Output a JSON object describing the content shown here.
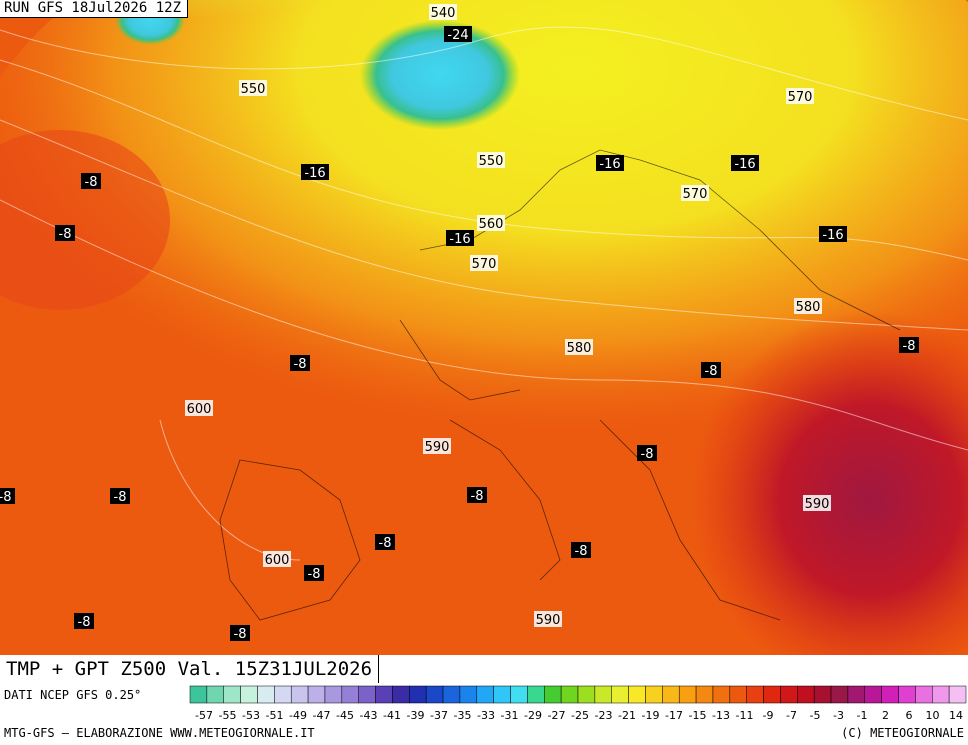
{
  "header": {
    "run": "RUN GFS 18Jul2026 12Z"
  },
  "title": "TMP + GPT Z500 Val. 15Z31JUL2026",
  "footer": {
    "source": "DATI NCEP GFS 0.25°",
    "credit": "MTG-GFS — ELABORAZIONE WWW.METEOGIORNALE.IT",
    "copyright": "(C) METEOGIORNALE"
  },
  "map_labels": [
    "540",
    "-24",
    "550",
    "570",
    "-8",
    "-16",
    "550",
    "-16",
    "-16",
    "570",
    "-8",
    "560",
    "-16",
    "-16",
    "570",
    "580",
    "-8",
    "-8",
    "580",
    "-8",
    "600",
    "590",
    "-8",
    "-8",
    "-8",
    "-8",
    "590",
    "-8",
    "-8",
    "600",
    "-8",
    "-8",
    "590",
    "-8"
  ],
  "colorbar": {
    "labels": [
      "-57",
      "-55",
      "-53",
      "-51",
      "-49",
      "-47",
      "-45",
      "-43",
      "-41",
      "-39",
      "-37",
      "-35",
      "-33",
      "-31",
      "-29",
      "-27",
      "-25",
      "-23",
      "-21",
      "-19",
      "-17",
      "-15",
      "-13",
      "-11",
      "-9",
      "-7",
      "-5",
      "-3",
      "-1",
      "2",
      "6",
      "10",
      "14"
    ],
    "colors": [
      "#3cc59b",
      "#6fd6b0",
      "#9fe6c8",
      "#c6f2dd",
      "#d8ecf0",
      "#d4d8f2",
      "#c8c4ee",
      "#bbb0e8",
      "#a898e0",
      "#9480d6",
      "#7a62c8",
      "#5a40b6",
      "#3a2ca4",
      "#2030b0",
      "#1a48c8",
      "#1a64dc",
      "#1a84ec",
      "#22a6f6",
      "#30c6f8",
      "#40def0",
      "#38d890",
      "#44cc30",
      "#70d420",
      "#9cde20",
      "#c8e828",
      "#e8ee30",
      "#f8e828",
      "#f8d020",
      "#f8b818",
      "#f8a010",
      "#f48810",
      "#f07010",
      "#ec5810",
      "#e84010",
      "#e02810",
      "#d01818",
      "#c01020",
      "#a81030",
      "#981848",
      "#a01870",
      "#b81898",
      "#d020b8",
      "#e040d0",
      "#e870e0",
      "#f098ec",
      "#f4c0f4"
    ]
  }
}
